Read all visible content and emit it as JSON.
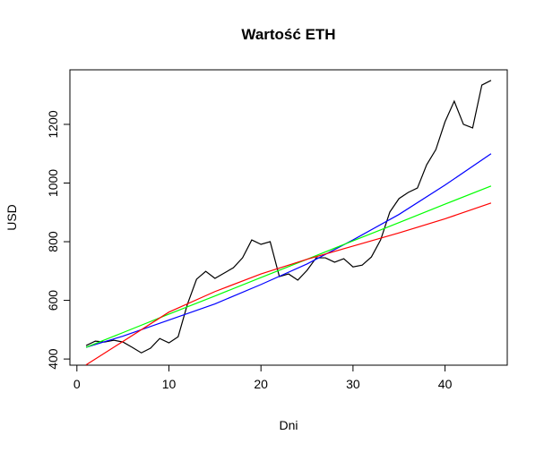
{
  "chart_data": {
    "type": "line",
    "title": "Wartość ETH",
    "x_label": "Dni",
    "y_label": "USD",
    "xlim": [
      -0.76,
      46.76
    ],
    "xticks": [
      0,
      10,
      20,
      30,
      40
    ],
    "ylim": [
      379,
      1386
    ],
    "yticks": [
      400,
      600,
      800,
      1000,
      1200
    ],
    "series": [
      {
        "color": "#000000",
        "x": [
          1,
          2,
          3,
          4,
          5,
          6,
          7,
          8,
          9,
          10,
          11,
          12,
          13,
          14,
          15,
          16,
          17,
          18,
          19,
          20,
          21,
          22,
          23,
          24,
          25,
          26,
          27,
          28,
          29,
          30,
          31,
          32,
          33,
          34,
          35,
          36,
          37,
          38,
          39,
          40,
          41,
          42,
          43,
          44,
          45
        ],
        "values": [
          446,
          461,
          458,
          464,
          458,
          440,
          421,
          437,
          470,
          455,
          476,
          586,
          672,
          699,
          675,
          693,
          711,
          745,
          806,
          791,
          800,
          681,
          690,
          669,
          702,
          745,
          745,
          730,
          742,
          714,
          720,
          748,
          806,
          901,
          947,
          968,
          983,
          1062,
          1114,
          1209,
          1279,
          1200,
          1188,
          1334,
          1350
        ]
      },
      {
        "color": "#0000ff",
        "x": [
          1,
          5,
          10,
          15,
          20,
          25,
          30,
          35,
          40,
          45
        ],
        "values": [
          440,
          478,
          533,
          588,
          654,
          724,
          806,
          893,
          993,
          1100
        ]
      },
      {
        "color": "#00ff00",
        "x": [
          1,
          5,
          10,
          15,
          20,
          25,
          30,
          35,
          40,
          45
        ],
        "values": [
          440,
          490,
          553,
          615,
          678,
          740,
          803,
          865,
          928,
          990
        ]
      },
      {
        "color": "#ff0000",
        "x": [
          1,
          5,
          10,
          15,
          20,
          25,
          30,
          35,
          40,
          45
        ],
        "values": [
          380,
          460,
          560,
          630,
          690,
          740,
          785,
          830,
          878,
          932
        ]
      }
    ]
  }
}
